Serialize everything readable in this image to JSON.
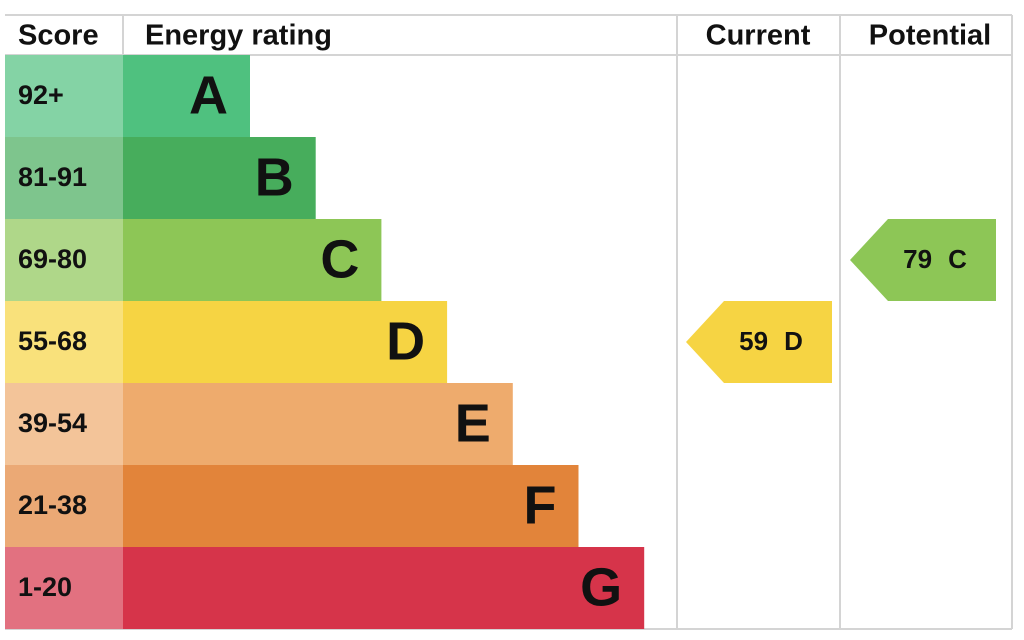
{
  "header": {
    "score": "Score",
    "rating": "Energy rating",
    "current": "Current",
    "potential": "Potential"
  },
  "bands": [
    {
      "score": "92+",
      "letter": "A",
      "color": "#4fc17f"
    },
    {
      "score": "81-91",
      "letter": "B",
      "color": "#47ad5c"
    },
    {
      "score": "69-80",
      "letter": "C",
      "color": "#8dc656"
    },
    {
      "score": "55-68",
      "letter": "D",
      "color": "#f6d443"
    },
    {
      "score": "39-54",
      "letter": "E",
      "color": "#eeab6d"
    },
    {
      "score": "21-38",
      "letter": "F",
      "color": "#e2843a"
    },
    {
      "score": "1-20",
      "letter": "G",
      "color": "#d6344a"
    }
  ],
  "current": {
    "value": "59",
    "letter": "D"
  },
  "potential": {
    "value": "79",
    "letter": "C"
  }
}
